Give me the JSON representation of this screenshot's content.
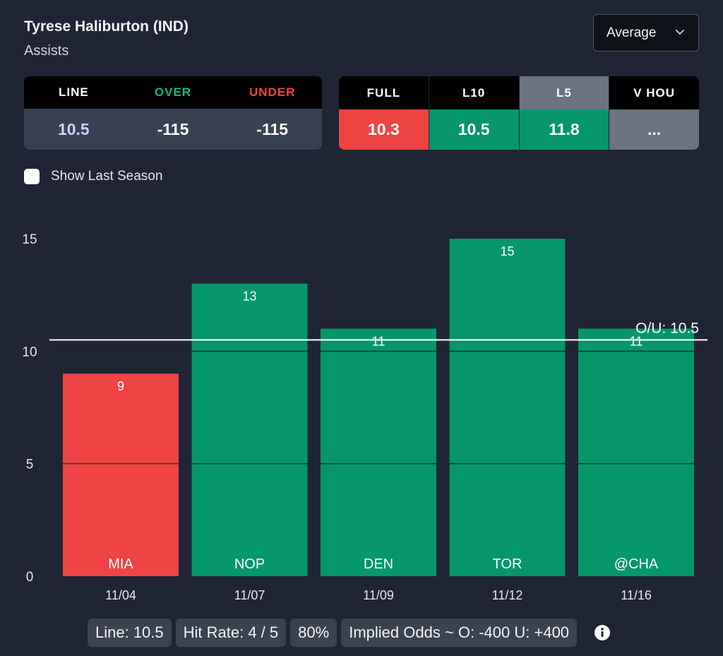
{
  "header": {
    "player": "Tyrese Haliburton (IND)",
    "stat": "Assists",
    "dropdown_value": "Average",
    "dropdown_icon": "chevron-down-icon"
  },
  "odds": {
    "headers": [
      {
        "label": "LINE",
        "color": "#ffffff"
      },
      {
        "label": "OVER",
        "color": "#10b981"
      },
      {
        "label": "UNDER",
        "color": "#ef4444"
      }
    ],
    "values": [
      {
        "value": "10.5",
        "color": "#c7d2fe"
      },
      {
        "value": "-115",
        "color": "#ffffff"
      },
      {
        "value": "-115",
        "color": "#ffffff"
      }
    ]
  },
  "averages": [
    {
      "label": "FULL",
      "value": "10.3",
      "color": "#ef4444",
      "selected": false
    },
    {
      "label": "L10",
      "value": "10.5",
      "color": "#059669",
      "selected": false
    },
    {
      "label": "L5",
      "value": "11.8",
      "color": "#059669",
      "selected": true
    },
    {
      "label": "V HOU",
      "value": "...",
      "color": "#6b7280",
      "selected": false
    }
  ],
  "show_last_season": {
    "label": "Show Last Season",
    "checked": false
  },
  "chart_data": {
    "type": "bar",
    "categories": [
      "11/04",
      "11/07",
      "11/09",
      "11/12",
      "11/16"
    ],
    "opponents": [
      "MIA",
      "NOP",
      "DEN",
      "TOR",
      "@CHA"
    ],
    "values": [
      9,
      13,
      11,
      15,
      11
    ],
    "bar_colors": [
      "#ef4444",
      "#059669",
      "#059669",
      "#059669",
      "#059669"
    ],
    "y_ticks": [
      0,
      5,
      10,
      15
    ],
    "ylim": [
      0,
      15
    ],
    "line_value": 10.5,
    "line_label": "O/U: 10.5",
    "grid": true
  },
  "footer": {
    "line": "Line: 10.5",
    "hit_rate": "Hit Rate: 4 / 5",
    "percent": "80%",
    "implied": "Implied Odds ~ O: -400 U: +400",
    "info_icon": "info-icon"
  }
}
